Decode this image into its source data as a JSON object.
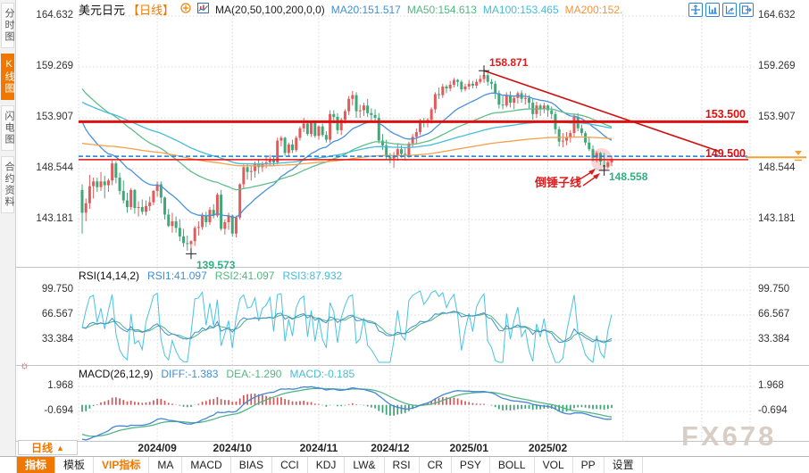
{
  "header": {
    "symbol": "美元日元",
    "period_tag": "【日线】",
    "ma_settings": "MA(20,50,100,200,0,0)",
    "ma_readouts": [
      {
        "label": "MA20:151.517",
        "color": "#3f8fd6"
      },
      {
        "label": "MA50:154.613",
        "color": "#53b87f"
      },
      {
        "label": "MA100:153.465",
        "color": "#45bcd9"
      },
      {
        "label": "MA200:152.",
        "color": "#f5953d"
      }
    ],
    "toolbar_icons": [
      "move-crosshair-icon",
      "axis-scale-icon",
      "axis-forward-icon",
      "popout-window-icon"
    ]
  },
  "icons": {
    "indicator_settings": "☼",
    "dropdown_up": "▲"
  },
  "sidebar": {
    "items": [
      {
        "label": "分时图",
        "active": false
      },
      {
        "label": "K线图",
        "active": true
      },
      {
        "label": "闪电图",
        "active": false
      },
      {
        "label": "合约资料",
        "active": false
      }
    ]
  },
  "colors": {
    "up_candle": "#e05b5b",
    "down_candle": "#3fa878",
    "accent_orange": "#f07800",
    "alert_red": "#e01010",
    "dashed_blue": "#1f7ad4",
    "trendline_red": "#cc1111"
  },
  "main_chart": {
    "y_labels": [
      "164.632",
      "159.269",
      "153.907",
      "148.544",
      "143.181"
    ],
    "alert_labels": [
      "153.500",
      "149.500"
    ],
    "annotations": {
      "high_label": "158.871",
      "low_label": "139.573",
      "recent_low_label": "148.558",
      "pattern_label": "倒锤子线"
    }
  },
  "rsi_panel": {
    "title": "RSI(14,14,2)",
    "readouts": [
      {
        "label": "RSI1:41.097",
        "color": "#3f8fd6"
      },
      {
        "label": "RSI2:41.097",
        "color": "#53b87f"
      },
      {
        "label": "RSI3:87.932",
        "color": "#45bcd9"
      }
    ],
    "y_labels": [
      "99.750",
      "66.567",
      "33.384"
    ]
  },
  "macd_panel": {
    "title": "MACD(26,12,9)",
    "readouts": [
      {
        "label": "DIFF:-1.383",
        "color": "#3f8fd6"
      },
      {
        "label": "DEA:-1.290",
        "color": "#53b87f"
      },
      {
        "label": "MACD:-0.185",
        "color": "#45bcd9"
      }
    ],
    "y_labels": [
      "1.968",
      "-0.694"
    ]
  },
  "footer": {
    "period_selector": "日线",
    "tabs": [
      {
        "label": "指标",
        "active": true
      },
      {
        "label": "模板"
      },
      {
        "label": "VIP指标",
        "vip": true
      },
      {
        "label": "MA"
      },
      {
        "label": "MACD"
      },
      {
        "label": "BIAS"
      },
      {
        "label": "CCI"
      },
      {
        "label": "KDJ"
      },
      {
        "label": "LW&"
      },
      {
        "label": "RSI"
      },
      {
        "label": "CR"
      },
      {
        "label": "PSY"
      },
      {
        "label": "BOLL"
      },
      {
        "label": "VOL"
      },
      {
        "label": "PP"
      },
      {
        "label": "设置"
      }
    ]
  },
  "watermark": "FX678",
  "chart_data": {
    "type": "candlestick",
    "symbol": "美元日元",
    "period": "日线",
    "ylim": [
      138.2,
      165.4
    ],
    "y_gridlines": [
      164.632,
      159.269,
      153.907,
      148.544,
      143.181
    ],
    "months": [
      {
        "label": "2024/09",
        "index": 20
      },
      {
        "label": "2024/10",
        "index": 40
      },
      {
        "label": "2024/11",
        "index": 63
      },
      {
        "label": "2024/12",
        "index": 82
      },
      {
        "label": "2025/01",
        "index": 103
      },
      {
        "label": "2025/02",
        "index": 124
      }
    ],
    "future_gridline_indices": [
      144,
      165
    ],
    "alert_lines": [
      153.5,
      149.5
    ],
    "dashed_price_line": 149.85,
    "current_price": 149.56,
    "trendline": {
      "from_index": 107,
      "from_price": 158.871,
      "to_index": 147,
      "to_price": 150.4
    },
    "annotations": {
      "high": {
        "index": 107,
        "price": 158.871
      },
      "low": {
        "index": 29,
        "price": 139.573
      },
      "recent_low": {
        "index": 139,
        "price": 148.558
      },
      "pattern_candle_index": 139
    },
    "ma": {
      "periods": [
        20,
        50,
        100,
        200
      ],
      "seeds": {
        "20": 154.5,
        "50": 157.5,
        "100": 155.8,
        "200": 151.3
      },
      "colors": {
        "20": "#4a90d9",
        "50": "#5fbd8b",
        "100": "#45bcd9",
        "200": "#f5a04a"
      }
    },
    "rsi": {
      "params": [
        14,
        14,
        2
      ],
      "gridlines": [
        99.75,
        66.567,
        33.384
      ],
      "values": {
        "rsi1": 41.097,
        "rsi2": 41.097,
        "rsi3": 87.932
      }
    },
    "macd": {
      "params": [
        26,
        12,
        9
      ],
      "gridlines": [
        1.968,
        -0.694
      ],
      "values": {
        "diff": -1.383,
        "dea": -1.29,
        "macd": -0.185
      },
      "ema_seeds": {
        "e12": 150.2,
        "e26": 153.6,
        "dea": -3.0
      }
    },
    "candles": [
      [
        146.3,
        146.9,
        141.7,
        143.9
      ],
      [
        143.9,
        145.4,
        143.0,
        144.9
      ],
      [
        144.9,
        147.9,
        144.3,
        146.7
      ],
      [
        146.7,
        147.6,
        145.4,
        147.2
      ],
      [
        147.2,
        147.6,
        146.1,
        146.6
      ],
      [
        146.6,
        148.2,
        146.2,
        147.2
      ],
      [
        147.2,
        147.8,
        145.4,
        146.8
      ],
      [
        146.8,
        147.5,
        146.1,
        147.3
      ],
      [
        147.3,
        149.4,
        146.8,
        149.1
      ],
      [
        149.1,
        149.3,
        147.0,
        147.6
      ],
      [
        147.6,
        148.1,
        145.8,
        146.2
      ],
      [
        146.2,
        147.3,
        144.9,
        145.2
      ],
      [
        145.2,
        146.0,
        143.9,
        144.5
      ],
      [
        144.5,
        146.5,
        144.2,
        146.3
      ],
      [
        146.3,
        146.4,
        143.8,
        144.4
      ],
      [
        144.4,
        145.1,
        143.5,
        144.5
      ],
      [
        144.5,
        145.3,
        143.7,
        144.0
      ],
      [
        144.0,
        145.2,
        143.6,
        144.6
      ],
      [
        144.6,
        145.6,
        144.1,
        145.0
      ],
      [
        145.0,
        146.3,
        144.7,
        146.2
      ],
      [
        146.2,
        147.2,
        145.6,
        146.9
      ],
      [
        146.9,
        147.2,
        144.9,
        145.5
      ],
      [
        145.5,
        145.6,
        143.2,
        143.7
      ],
      [
        143.7,
        144.3,
        142.4,
        142.5
      ],
      [
        142.5,
        143.9,
        141.8,
        143.0
      ],
      [
        143.0,
        143.5,
        141.8,
        142.3
      ],
      [
        142.3,
        143.2,
        140.9,
        141.4
      ],
      [
        141.4,
        142.2,
        140.3,
        140.7
      ],
      [
        140.7,
        141.5,
        139.9,
        140.6
      ],
      [
        140.6,
        141.0,
        139.573,
        140.9
      ],
      [
        140.9,
        142.5,
        140.4,
        142.3
      ],
      [
        142.3,
        143.0,
        141.5,
        142.4
      ],
      [
        142.4,
        143.9,
        142.1,
        143.6
      ],
      [
        143.6,
        144.0,
        142.4,
        142.9
      ],
      [
        142.9,
        144.5,
        142.6,
        144.2
      ],
      [
        144.2,
        144.8,
        143.3,
        143.6
      ],
      [
        143.6,
        146.0,
        143.4,
        145.8
      ],
      [
        145.8,
        146.3,
        142.0,
        142.2
      ],
      [
        142.2,
        143.2,
        141.6,
        142.9
      ],
      [
        142.9,
        143.9,
        142.1,
        143.6
      ],
      [
        143.6,
        143.7,
        141.4,
        141.7
      ],
      [
        141.7,
        143.6,
        141.3,
        143.4
      ],
      [
        143.4,
        147.0,
        143.2,
        146.9
      ],
      [
        146.9,
        149.0,
        146.5,
        148.7
      ],
      [
        148.7,
        149.1,
        147.4,
        148.2
      ],
      [
        148.2,
        148.9,
        147.3,
        148.3
      ],
      [
        148.3,
        149.3,
        147.6,
        149.1
      ],
      [
        149.1,
        149.5,
        148.0,
        148.7
      ],
      [
        148.7,
        149.3,
        148.2,
        149.1
      ],
      [
        149.1,
        149.8,
        148.6,
        149.2
      ],
      [
        149.2,
        150.0,
        148.9,
        149.5
      ],
      [
        149.5,
        149.9,
        148.8,
        149.2
      ],
      [
        149.2,
        151.8,
        149.0,
        151.5
      ],
      [
        151.5,
        152.0,
        150.9,
        151.8
      ],
      [
        151.8,
        151.9,
        149.9,
        150.2
      ],
      [
        150.2,
        151.3,
        149.8,
        151.1
      ],
      [
        151.1,
        151.6,
        150.2,
        150.5
      ],
      [
        150.5,
        152.0,
        150.3,
        151.8
      ],
      [
        151.8,
        153.0,
        151.5,
        152.8
      ],
      [
        152.8,
        153.9,
        152.4,
        153.3
      ],
      [
        153.3,
        153.5,
        152.0,
        152.2
      ],
      [
        152.2,
        153.5,
        151.9,
        153.4
      ],
      [
        153.4,
        153.6,
        151.8,
        152.0
      ],
      [
        152.0,
        153.1,
        151.6,
        153.0
      ],
      [
        153.0,
        153.3,
        151.9,
        152.1
      ],
      [
        152.1,
        152.5,
        151.3,
        151.6
      ],
      [
        151.6,
        154.7,
        151.3,
        154.3
      ],
      [
        154.3,
        154.7,
        153.3,
        154.0
      ],
      [
        154.0,
        154.4,
        152.2,
        152.6
      ],
      [
        152.6,
        153.9,
        152.1,
        153.7
      ],
      [
        153.7,
        154.8,
        153.3,
        154.6
      ],
      [
        154.6,
        156.2,
        154.2,
        155.9
      ],
      [
        155.9,
        156.74,
        155.2,
        156.3
      ],
      [
        156.3,
        156.6,
        153.9,
        154.6
      ],
      [
        154.6,
        155.3,
        153.9,
        154.7
      ],
      [
        154.7,
        155.5,
        154.1,
        155.2
      ],
      [
        155.2,
        155.9,
        154.0,
        154.4
      ],
      [
        154.4,
        154.9,
        153.6,
        154.2
      ],
      [
        154.2,
        154.8,
        153.5,
        153.9
      ],
      [
        153.9,
        154.4,
        151.2,
        151.5
      ],
      [
        151.5,
        152.2,
        150.5,
        151.0
      ],
      [
        151.0,
        151.6,
        149.5,
        149.8
      ],
      [
        149.8,
        150.2,
        149.1,
        149.6
      ],
      [
        149.6,
        150.3,
        148.65,
        149.9
      ],
      [
        149.9,
        151.2,
        149.4,
        150.6
      ],
      [
        150.6,
        151.0,
        149.7,
        150.1
      ],
      [
        150.1,
        150.7,
        149.4,
        150.0
      ],
      [
        150.0,
        151.4,
        149.7,
        151.2
      ],
      [
        151.2,
        152.2,
        150.8,
        151.9
      ],
      [
        151.9,
        152.8,
        151.2,
        152.4
      ],
      [
        152.4,
        153.8,
        152.1,
        153.6
      ],
      [
        153.6,
        153.9,
        152.9,
        153.4
      ],
      [
        153.4,
        153.9,
        152.9,
        153.7
      ],
      [
        153.7,
        155.0,
        153.3,
        154.8
      ],
      [
        154.8,
        156.6,
        154.4,
        156.4
      ],
      [
        156.4,
        157.1,
        155.9,
        156.3
      ],
      [
        156.3,
        157.5,
        156.0,
        157.2
      ],
      [
        157.2,
        157.4,
        156.5,
        157.0
      ],
      [
        157.0,
        157.8,
        156.7,
        157.4
      ],
      [
        157.4,
        158.1,
        157.1,
        157.9
      ],
      [
        157.9,
        158.0,
        157.2,
        157.7
      ],
      [
        157.7,
        157.9,
        156.6,
        156.9
      ],
      [
        156.9,
        157.5,
        156.7,
        157.2
      ],
      [
        157.2,
        157.9,
        156.9,
        157.5
      ],
      [
        157.5,
        157.8,
        157.0,
        157.3
      ],
      [
        157.3,
        158.0,
        157.0,
        157.7
      ],
      [
        157.7,
        158.4,
        157.5,
        158.0
      ],
      [
        158.0,
        158.871,
        157.6,
        158.4
      ],
      [
        158.4,
        158.6,
        157.3,
        157.7
      ],
      [
        157.7,
        158.0,
        156.9,
        157.5
      ],
      [
        157.5,
        157.8,
        155.9,
        156.5
      ],
      [
        156.5,
        156.8,
        154.9,
        155.3
      ],
      [
        155.3,
        156.2,
        154.8,
        155.2
      ],
      [
        155.2,
        156.6,
        155.0,
        156.3
      ],
      [
        156.3,
        156.7,
        155.0,
        155.5
      ],
      [
        155.5,
        156.2,
        154.8,
        156.0
      ],
      [
        156.0,
        156.7,
        155.4,
        156.5
      ],
      [
        156.5,
        156.8,
        155.5,
        155.9
      ],
      [
        155.9,
        156.5,
        155.3,
        156.0
      ],
      [
        156.0,
        156.3,
        154.9,
        155.5
      ],
      [
        155.5,
        155.9,
        153.7,
        154.3
      ],
      [
        154.3,
        155.6,
        153.9,
        155.2
      ],
      [
        155.2,
        155.4,
        154.1,
        154.8
      ],
      [
        154.8,
        155.5,
        154.4,
        155.2
      ],
      [
        155.2,
        155.3,
        154.0,
        154.7
      ],
      [
        154.7,
        155.1,
        153.8,
        154.3
      ],
      [
        154.3,
        154.6,
        152.2,
        152.7
      ],
      [
        152.7,
        153.0,
        150.9,
        151.4
      ],
      [
        151.4,
        152.3,
        150.8,
        151.5
      ],
      [
        151.5,
        152.4,
        151.0,
        151.9
      ],
      [
        151.9,
        152.6,
        151.3,
        152.3
      ],
      [
        152.3,
        154.3,
        151.9,
        154.0
      ],
      [
        154.0,
        154.4,
        152.5,
        152.8
      ],
      [
        152.8,
        153.2,
        152.0,
        152.3
      ],
      [
        152.3,
        152.5,
        151.0,
        151.3
      ],
      [
        151.3,
        151.9,
        150.4,
        150.6
      ],
      [
        150.6,
        151.0,
        149.3,
        149.7
      ],
      [
        149.7,
        150.4,
        149.2,
        150.2
      ],
      [
        150.2,
        150.3,
        148.9,
        149.3
      ],
      [
        148.9,
        150.2,
        148.558,
        148.75
      ],
      [
        148.75,
        149.4,
        148.6,
        149.2
      ],
      [
        149.2,
        149.9,
        148.8,
        149.56
      ]
    ]
  }
}
